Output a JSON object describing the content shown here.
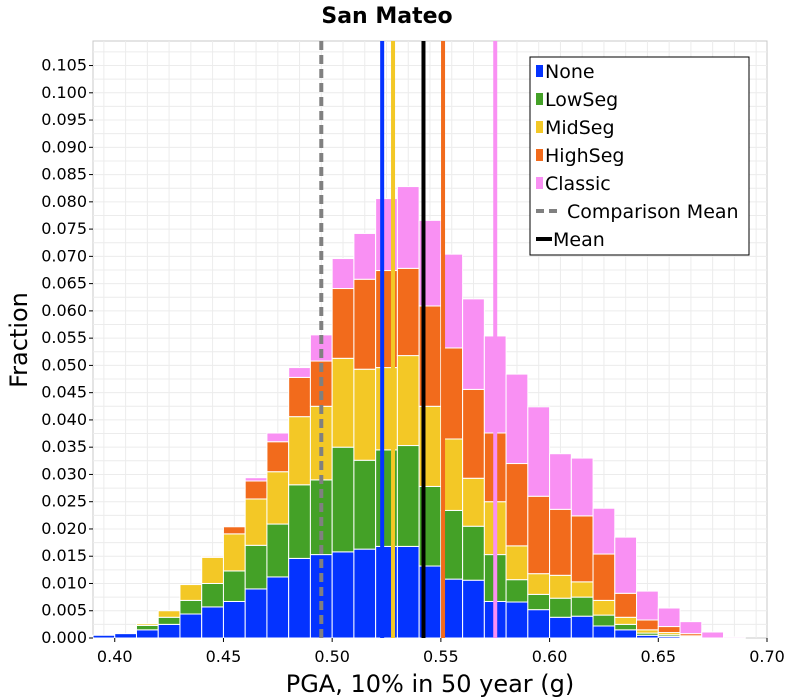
{
  "chart_data": {
    "type": "bar",
    "stacked": true,
    "title": "San Mateo",
    "xlabel": "PGA, 10% in 50 year (g)",
    "ylabel": "Fraction",
    "xlim": [
      0.39,
      0.7
    ],
    "ylim": [
      0.0,
      0.1095
    ],
    "bin_width": 0.01,
    "grid": true,
    "legend_position": "top-right",
    "x_ticks": [
      "0.40",
      "0.45",
      "0.50",
      "0.55",
      "0.60",
      "0.65",
      "0.70"
    ],
    "y_ticks": [
      "0.000",
      "0.005",
      "0.010",
      "0.015",
      "0.020",
      "0.025",
      "0.030",
      "0.035",
      "0.040",
      "0.045",
      "0.050",
      "0.055",
      "0.060",
      "0.065",
      "0.070",
      "0.075",
      "0.080",
      "0.085",
      "0.090",
      "0.095",
      "0.100",
      "0.105"
    ],
    "bin_centers": [
      0.395,
      0.405,
      0.415,
      0.425,
      0.435,
      0.445,
      0.455,
      0.465,
      0.475,
      0.485,
      0.495,
      0.505,
      0.515,
      0.525,
      0.535,
      0.545,
      0.555,
      0.565,
      0.575,
      0.585,
      0.595,
      0.605,
      0.615,
      0.625,
      0.635,
      0.645,
      0.655,
      0.665,
      0.675,
      0.685,
      0.695
    ],
    "series": [
      {
        "name": "None",
        "color": "#0433ff",
        "values": [
          0.0005,
          0.0008,
          0.0015,
          0.0025,
          0.0044,
          0.0057,
          0.0067,
          0.009,
          0.0112,
          0.0146,
          0.0153,
          0.0158,
          0.0163,
          0.0168,
          0.0168,
          0.0132,
          0.0108,
          0.0106,
          0.0067,
          0.0066,
          0.0052,
          0.0038,
          0.004,
          0.0022,
          0.0015,
          0.0005,
          0.0003,
          0.0001,
          0.0,
          0.0,
          0.0
        ]
      },
      {
        "name": "LowSeg",
        "color": "#44a127",
        "values": [
          0.0,
          0.0,
          0.0008,
          0.0013,
          0.0025,
          0.0043,
          0.0056,
          0.008,
          0.0097,
          0.0135,
          0.0137,
          0.0192,
          0.0163,
          0.0177,
          0.0185,
          0.0146,
          0.0126,
          0.0099,
          0.0086,
          0.0041,
          0.0028,
          0.0035,
          0.0035,
          0.002,
          0.001,
          0.0004,
          0.0003,
          0.0001,
          0.0,
          0.0,
          0.0
        ]
      },
      {
        "name": "MidSeg",
        "color": "#f3c826",
        "values": [
          0.0,
          0.0,
          0.0003,
          0.0012,
          0.0029,
          0.0048,
          0.0068,
          0.0085,
          0.0096,
          0.0125,
          0.0135,
          0.0163,
          0.0167,
          0.0151,
          0.0165,
          0.0147,
          0.0131,
          0.0088,
          0.0097,
          0.0062,
          0.0038,
          0.0042,
          0.0028,
          0.0027,
          0.0013,
          0.0006,
          0.0004,
          0.0002,
          0.0,
          0.0,
          0.0
        ]
      },
      {
        "name": "HighSeg",
        "color": "#f26b1c",
        "values": [
          0.0,
          0.0,
          0.0,
          0.0,
          0.0,
          0.0002,
          0.0013,
          0.0033,
          0.0055,
          0.0072,
          0.0083,
          0.0128,
          0.0165,
          0.0178,
          0.016,
          0.0184,
          0.0167,
          0.0163,
          0.0126,
          0.0151,
          0.0142,
          0.0121,
          0.0121,
          0.0085,
          0.0044,
          0.0018,
          0.0011,
          0.0004,
          0.0,
          0.0,
          0.0
        ]
      },
      {
        "name": "Classic",
        "color": "#f990f3",
        "values": [
          0.0,
          0.0,
          0.0,
          0.0,
          0.0,
          0.0,
          0.0,
          0.0006,
          0.0016,
          0.0018,
          0.0048,
          0.0055,
          0.0084,
          0.0132,
          0.015,
          0.0157,
          0.0172,
          0.0166,
          0.0178,
          0.0164,
          0.0164,
          0.0102,
          0.0106,
          0.0084,
          0.0103,
          0.0053,
          0.0034,
          0.0022,
          0.0011,
          0.0002,
          0.0
        ]
      }
    ],
    "lines": [
      {
        "name": "None",
        "x": 0.523,
        "color": "#0433ff",
        "style": "solid",
        "height_frac": 1.0
      },
      {
        "name": "MidSeg",
        "x": 0.528,
        "color": "#f3c826",
        "style": "solid",
        "height_frac": 1.0
      },
      {
        "name": "HighSeg",
        "x": 0.551,
        "color": "#f26b1c",
        "style": "solid",
        "height_frac": 1.0
      },
      {
        "name": "Classic",
        "x": 0.575,
        "color": "#f990f3",
        "style": "solid",
        "height_frac": 1.0
      },
      {
        "name": "Comparison Mean",
        "x": 0.495,
        "color": "#808080",
        "style": "dashed",
        "height_frac": 1.0
      },
      {
        "name": "Mean",
        "x": 0.542,
        "color": "#000000",
        "style": "solid",
        "height_frac": 1.0
      }
    ],
    "legend": [
      {
        "label": "None",
        "color": "#0433ff",
        "kind": "box"
      },
      {
        "label": "LowSeg",
        "color": "#44a127",
        "kind": "box"
      },
      {
        "label": "MidSeg",
        "color": "#f3c826",
        "kind": "box"
      },
      {
        "label": "HighSeg",
        "color": "#f26b1c",
        "kind": "box"
      },
      {
        "label": "Classic",
        "color": "#f990f3",
        "kind": "box"
      },
      {
        "label": "Comparison Mean",
        "color": "#808080",
        "kind": "dash"
      },
      {
        "label": "Mean",
        "color": "#000000",
        "kind": "line"
      }
    ]
  }
}
